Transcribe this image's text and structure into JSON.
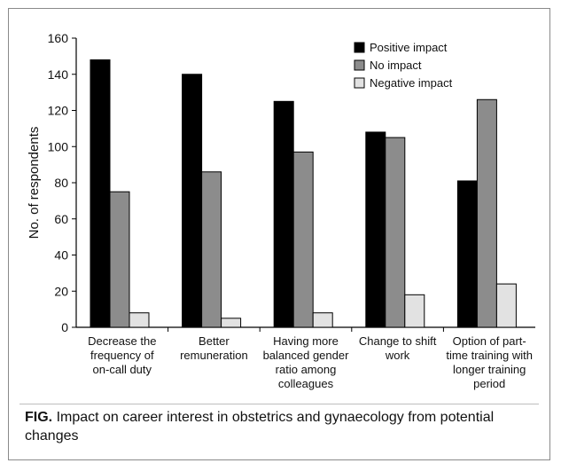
{
  "caption": {
    "label": "FIG.",
    "text": "Impact on career interest in obstetrics and gynaecology from potential changes"
  },
  "chart_data": {
    "type": "bar",
    "ylabel": "No. of respondents",
    "ylim": [
      0,
      160
    ],
    "yticks": [
      0,
      20,
      40,
      60,
      80,
      100,
      120,
      140,
      160
    ],
    "grid": false,
    "legend": "top-right",
    "categories": [
      [
        "Decrease the",
        "frequency of",
        "on-call duty"
      ],
      [
        "Better",
        "remuneration"
      ],
      [
        "Having more",
        "balanced gender",
        "ratio among",
        "colleagues"
      ],
      [
        "Change to shift",
        "work"
      ],
      [
        "Option of part-",
        "time training with",
        "longer training",
        "period"
      ]
    ],
    "series": [
      {
        "name": "Positive impact",
        "color": "#000000",
        "values": [
          148,
          140,
          125,
          108,
          81
        ]
      },
      {
        "name": "No impact",
        "color": "#8c8c8c",
        "values": [
          75,
          86,
          97,
          105,
          126
        ]
      },
      {
        "name": "Negative impact",
        "color": "#e2e2e2",
        "values": [
          8,
          5,
          8,
          18,
          24
        ]
      }
    ]
  }
}
